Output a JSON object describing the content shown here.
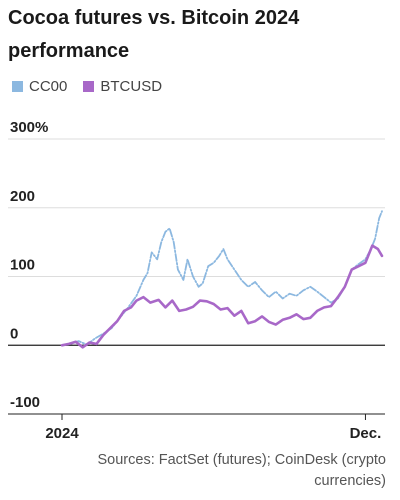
{
  "chart_data": {
    "type": "line",
    "title": "Cocoa futures vs. Bitcoin 2024 performance",
    "ylabel": "",
    "xlabel": "",
    "y_ticks": [
      "300%",
      "200",
      "100",
      "0",
      "-100"
    ],
    "y_tick_values": [
      300,
      200,
      100,
      0,
      -100
    ],
    "ylim": [
      -100,
      300
    ],
    "x_ticks": [
      "2024",
      "Dec."
    ],
    "x_tick_values": [
      0,
      11
    ],
    "xlim": [
      0,
      11.6
    ],
    "x_unit": "months since start of 2024",
    "grid": "horizontal",
    "legend": "top-left",
    "series": [
      {
        "name": "CC00",
        "color": "#8cb8e0",
        "style": "dash-dot",
        "points": [
          [
            0,
            0
          ],
          [
            0.3,
            2
          ],
          [
            0.6,
            6
          ],
          [
            0.9,
            1
          ],
          [
            1.2,
            10
          ],
          [
            1.5,
            17
          ],
          [
            1.8,
            25
          ],
          [
            2.1,
            40
          ],
          [
            2.4,
            55
          ],
          [
            2.7,
            72
          ],
          [
            2.95,
            95
          ],
          [
            3.1,
            105
          ],
          [
            3.25,
            135
          ],
          [
            3.45,
            125
          ],
          [
            3.6,
            150
          ],
          [
            3.75,
            165
          ],
          [
            3.9,
            170
          ],
          [
            4.05,
            150
          ],
          [
            4.2,
            110
          ],
          [
            4.4,
            95
          ],
          [
            4.55,
            125
          ],
          [
            4.75,
            100
          ],
          [
            4.95,
            85
          ],
          [
            5.1,
            90
          ],
          [
            5.3,
            115
          ],
          [
            5.5,
            120
          ],
          [
            5.7,
            130
          ],
          [
            5.85,
            140
          ],
          [
            6.0,
            125
          ],
          [
            6.25,
            110
          ],
          [
            6.5,
            95
          ],
          [
            6.75,
            85
          ],
          [
            7.0,
            92
          ],
          [
            7.25,
            80
          ],
          [
            7.5,
            70
          ],
          [
            7.75,
            78
          ],
          [
            8.0,
            68
          ],
          [
            8.25,
            75
          ],
          [
            8.5,
            72
          ],
          [
            8.75,
            80
          ],
          [
            9.0,
            85
          ],
          [
            9.25,
            78
          ],
          [
            9.5,
            70
          ],
          [
            9.75,
            62
          ],
          [
            10.0,
            68
          ],
          [
            10.25,
            85
          ],
          [
            10.5,
            110
          ],
          [
            10.75,
            118
          ],
          [
            11.0,
            125
          ],
          [
            11.2,
            140
          ],
          [
            11.35,
            155
          ],
          [
            11.5,
            185
          ],
          [
            11.6,
            195
          ]
        ]
      },
      {
        "name": "BTCUSD",
        "color": "#a868c8",
        "style": "solid",
        "points": [
          [
            0,
            0
          ],
          [
            0.25,
            2
          ],
          [
            0.5,
            5
          ],
          [
            0.75,
            -3
          ],
          [
            1.0,
            4
          ],
          [
            1.25,
            2
          ],
          [
            1.5,
            15
          ],
          [
            1.75,
            25
          ],
          [
            2.0,
            35
          ],
          [
            2.25,
            50
          ],
          [
            2.5,
            55
          ],
          [
            2.7,
            65
          ],
          [
            2.95,
            70
          ],
          [
            3.2,
            62
          ],
          [
            3.5,
            66
          ],
          [
            3.75,
            55
          ],
          [
            4.0,
            65
          ],
          [
            4.25,
            50
          ],
          [
            4.5,
            52
          ],
          [
            4.75,
            56
          ],
          [
            5.0,
            65
          ],
          [
            5.25,
            64
          ],
          [
            5.5,
            60
          ],
          [
            5.75,
            52
          ],
          [
            6.0,
            54
          ],
          [
            6.25,
            43
          ],
          [
            6.5,
            50
          ],
          [
            6.75,
            32
          ],
          [
            7.0,
            35
          ],
          [
            7.25,
            42
          ],
          [
            7.5,
            34
          ],
          [
            7.75,
            30
          ],
          [
            8.0,
            37
          ],
          [
            8.25,
            40
          ],
          [
            8.5,
            45
          ],
          [
            8.75,
            38
          ],
          [
            9.0,
            40
          ],
          [
            9.25,
            50
          ],
          [
            9.5,
            55
          ],
          [
            9.75,
            57
          ],
          [
            10.0,
            70
          ],
          [
            10.25,
            85
          ],
          [
            10.5,
            110
          ],
          [
            10.75,
            115
          ],
          [
            11.0,
            120
          ],
          [
            11.25,
            145
          ],
          [
            11.45,
            140
          ],
          [
            11.6,
            130
          ]
        ]
      }
    ]
  },
  "source": {
    "line1": "Sources: FactSet (futures); CoinDesk (crypto",
    "line2": "currencies)"
  }
}
